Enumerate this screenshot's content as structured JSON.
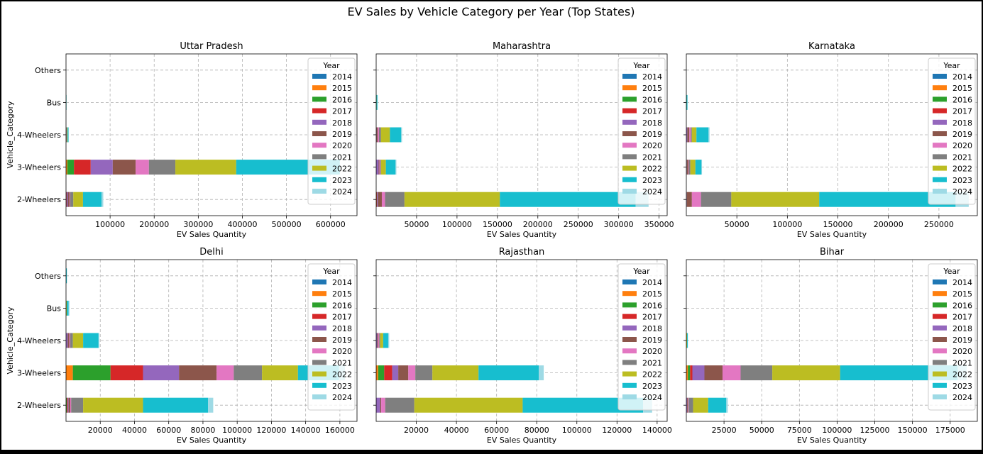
{
  "figure": {
    "title": "EV Sales by Vehicle Category per Year (Top States)"
  },
  "chart_data": {
    "type": "bar",
    "orientation": "horizontal",
    "stacked": true,
    "grid": true,
    "legend_title": "Year",
    "legend_placement": "upper right",
    "years": [
      "2014",
      "2015",
      "2016",
      "2017",
      "2018",
      "2019",
      "2020",
      "2021",
      "2022",
      "2023",
      "2024"
    ],
    "year_colors": [
      "#1f77b4",
      "#ff7f0e",
      "#2ca02c",
      "#d62728",
      "#9467bd",
      "#8c564b",
      "#e377c2",
      "#7f7f7f",
      "#bcbd22",
      "#17becf",
      "#9edae5"
    ],
    "categories": [
      "2-Wheelers",
      "3-Wheelers",
      "4-Wheelers",
      "Bus",
      "Others"
    ],
    "xlabel": "EV Sales Quantity",
    "ylabel": "Vehicle_Category",
    "panels": [
      {
        "title": "Uttar Pradesh",
        "xlim": [
          0,
          660000
        ],
        "xticks": [
          100000,
          200000,
          300000,
          400000,
          500000,
          600000
        ],
        "show_ylabels": true,
        "values": {
          "2-Wheelers": [
            0,
            0,
            500,
            1000,
            2500,
            4000,
            1500,
            7000,
            22000,
            42000,
            4000
          ],
          "3-Wheelers": [
            0,
            3000,
            15000,
            38000,
            50000,
            52000,
            30000,
            60000,
            138000,
            235000,
            0
          ],
          "4-Wheelers": [
            0,
            0,
            0,
            0,
            0,
            500,
            500,
            1000,
            1500,
            2000,
            500
          ],
          "Bus": [
            0,
            0,
            0,
            0,
            0,
            0,
            0,
            0,
            100,
            200,
            100
          ],
          "Others": [
            0,
            0,
            0,
            0,
            0,
            0,
            0,
            0,
            0,
            0,
            0
          ]
        }
      },
      {
        "title": "Maharashtra",
        "xlim": [
          0,
          360000
        ],
        "xticks": [
          50000,
          100000,
          150000,
          200000,
          250000,
          300000,
          350000
        ],
        "show_ylabels": false,
        "values": {
          "2-Wheelers": [
            0,
            0,
            500,
            500,
            1000,
            5000,
            4000,
            24000,
            118000,
            168000,
            16000
          ],
          "3-Wheelers": [
            0,
            0,
            0,
            0,
            3000,
            1000,
            1000,
            1000,
            6000,
            12000,
            1000
          ],
          "4-Wheelers": [
            0,
            0,
            0,
            0,
            500,
            1500,
            1500,
            2500,
            11000,
            14000,
            1000
          ],
          "Bus": [
            0,
            0,
            0,
            0,
            0,
            0,
            0,
            0,
            500,
            1000,
            500
          ],
          "Others": [
            0,
            0,
            0,
            0,
            0,
            0,
            0,
            0,
            0,
            0,
            0
          ]
        }
      },
      {
        "title": "Karnataka",
        "xlim": [
          0,
          288000
        ],
        "xticks": [
          50000,
          100000,
          150000,
          200000,
          250000
        ],
        "show_ylabels": false,
        "values": {
          "2-Wheelers": [
            0,
            0,
            0,
            0,
            500,
            5000,
            9000,
            30000,
            87000,
            135000,
            13000
          ],
          "3-Wheelers": [
            0,
            0,
            0,
            0,
            500,
            1500,
            500,
            1500,
            5000,
            6000,
            500
          ],
          "4-Wheelers": [
            0,
            0,
            0,
            0,
            1000,
            2000,
            1500,
            1000,
            4500,
            12000,
            1000
          ],
          "Bus": [
            0,
            0,
            0,
            0,
            0,
            0,
            0,
            0,
            300,
            700,
            200
          ],
          "Others": [
            0,
            0,
            0,
            0,
            0,
            0,
            0,
            0,
            0,
            0,
            0
          ]
        }
      },
      {
        "title": "Delhi",
        "xlim": [
          0,
          170000
        ],
        "xticks": [
          20000,
          40000,
          60000,
          80000,
          100000,
          120000,
          140000,
          160000
        ],
        "show_ylabels": true,
        "values": {
          "2-Wheelers": [
            0,
            0,
            500,
            500,
            500,
            1000,
            500,
            7000,
            35000,
            38000,
            3000
          ],
          "3-Wheelers": [
            0,
            4000,
            22000,
            19000,
            21000,
            22000,
            10000,
            16500,
            21000,
            24000,
            3500
          ],
          "4-Wheelers": [
            0,
            0,
            0,
            0,
            1000,
            1000,
            500,
            1500,
            6000,
            9000,
            500
          ],
          "Bus": [
            0,
            0,
            0,
            0,
            0,
            0,
            0,
            0,
            500,
            1000,
            500
          ],
          "Others": [
            0,
            0,
            0,
            0,
            0,
            0,
            0,
            0,
            0,
            500,
            0
          ]
        }
      },
      {
        "title": "Rajasthan",
        "xlim": [
          0,
          145000
        ],
        "xticks": [
          20000,
          40000,
          60000,
          80000,
          100000,
          120000,
          140000
        ],
        "show_ylabels": false,
        "values": {
          "2-Wheelers": [
            0,
            0,
            0,
            0,
            2000,
            500,
            2000,
            14500,
            54000,
            60000,
            4500
          ],
          "3-Wheelers": [
            0,
            1000,
            3000,
            4000,
            3000,
            5000,
            3500,
            8500,
            23000,
            30000,
            2500
          ],
          "4-Wheelers": [
            0,
            0,
            0,
            0,
            500,
            500,
            500,
            500,
            1500,
            2500,
            500
          ],
          "Bus": [
            0,
            0,
            0,
            0,
            0,
            0,
            0,
            0,
            0,
            0,
            0
          ],
          "Others": [
            0,
            0,
            0,
            0,
            0,
            0,
            0,
            0,
            0,
            0,
            0
          ]
        }
      },
      {
        "title": "Bihar",
        "xlim": [
          0,
          193000
        ],
        "xticks": [
          25000,
          50000,
          75000,
          100000,
          125000,
          150000,
          175000
        ],
        "show_ylabels": false,
        "values": {
          "2-Wheelers": [
            0,
            0,
            0,
            0,
            500,
            500,
            500,
            3000,
            10000,
            12000,
            1000
          ],
          "3-Wheelers": [
            0,
            1000,
            1500,
            1500,
            8000,
            12000,
            12000,
            21000,
            45000,
            78000,
            6000
          ],
          "4-Wheelers": [
            0,
            0,
            0,
            0,
            0,
            0,
            0,
            0,
            500,
            500,
            0
          ],
          "Bus": [
            0,
            0,
            0,
            0,
            0,
            0,
            0,
            0,
            0,
            0,
            0
          ],
          "Others": [
            0,
            0,
            0,
            0,
            0,
            0,
            0,
            0,
            0,
            0,
            0
          ]
        }
      }
    ]
  }
}
